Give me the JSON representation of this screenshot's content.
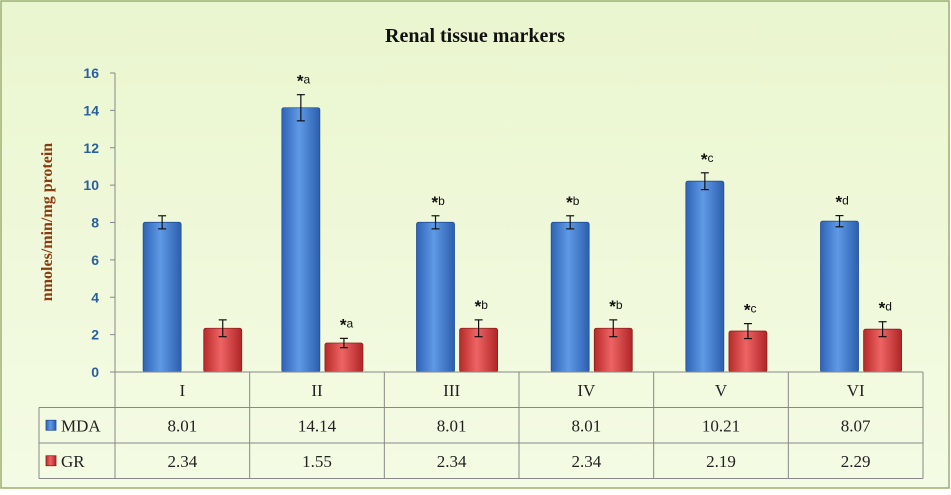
{
  "chart_data": {
    "type": "bar",
    "title": "Renal tissue markers",
    "ylabel": "nmoles/min/mg protein",
    "xlabel": "",
    "ylim": [
      0,
      16
    ],
    "yticks": [
      0,
      2,
      4,
      6,
      8,
      10,
      12,
      14,
      16
    ],
    "categories": [
      "I",
      "II",
      "III",
      "IV",
      "V",
      "VI"
    ],
    "grid": false,
    "legend": "data-table-left",
    "series": [
      {
        "name": "MDA",
        "color": "#3b78d0",
        "values": [
          8.01,
          14.14,
          8.01,
          8.01,
          10.21,
          8.07
        ],
        "errors": [
          0.35,
          0.7,
          0.35,
          0.35,
          0.45,
          0.3
        ],
        "annotations": [
          "",
          "*a",
          "*b",
          "*b",
          "*c",
          "*d"
        ]
      },
      {
        "name": "GR",
        "color": "#d63b3b",
        "values": [
          2.34,
          1.55,
          2.34,
          2.34,
          2.19,
          2.29
        ],
        "errors": [
          0.45,
          0.25,
          0.45,
          0.45,
          0.4,
          0.4
        ],
        "annotations": [
          "",
          "*a",
          "*b",
          "*b",
          "*c",
          "*d"
        ]
      }
    ],
    "table": {
      "rows": [
        {
          "label": "MDA",
          "values": [
            "8.01",
            "14.14",
            "8.01",
            "8.01",
            "10.21",
            "8.07"
          ]
        },
        {
          "label": "GR",
          "values": [
            "2.34",
            "1.55",
            "2.34",
            "2.34",
            "2.19",
            "2.29"
          ]
        }
      ]
    }
  }
}
